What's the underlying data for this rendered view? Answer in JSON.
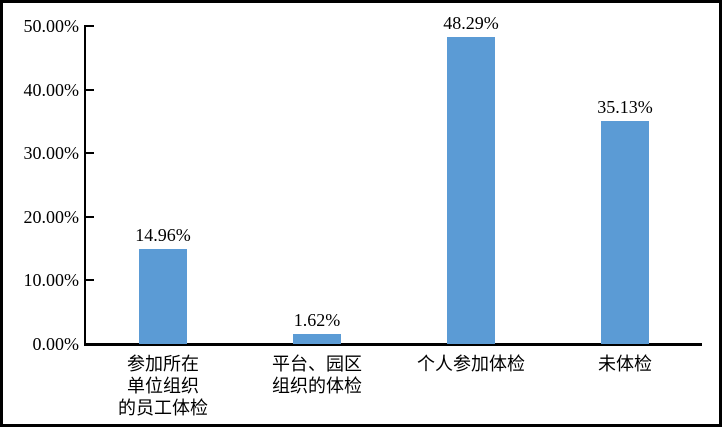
{
  "chart_data": {
    "type": "bar",
    "title": "",
    "xlabel": "",
    "ylabel": "",
    "categories": [
      "参加所在\n单位组织\n的员工体检",
      "平台、园区\n组织的体检",
      "个人参加体检",
      "未体检"
    ],
    "values": [
      14.96,
      1.62,
      48.29,
      35.13
    ],
    "value_labels": [
      "14.96%",
      "1.62%",
      "48.29%",
      "35.13%"
    ],
    "y_ticks": [
      "0.00%",
      "10.00%",
      "20.00%",
      "30.00%",
      "40.00%",
      "50.00%"
    ],
    "ylim": [
      0,
      50
    ],
    "grid": false,
    "legend_position": "none",
    "bar_color": "#5B9BD5",
    "axis_color": "#000000",
    "frame_border_color": "#000000",
    "background_color": "#ffffff"
  }
}
